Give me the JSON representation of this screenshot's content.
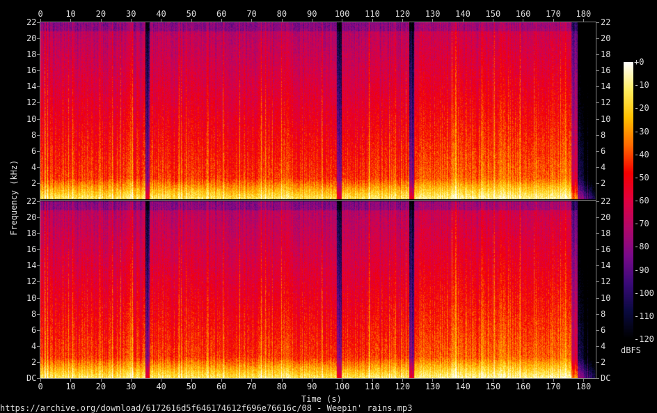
{
  "chart_data": {
    "type": "heatmap",
    "title": "",
    "xlabel": "Time (s)",
    "ylabel": "Frequency (kHz)",
    "x_ticks": [
      "0",
      "10",
      "20",
      "30",
      "40",
      "50",
      "60",
      "70",
      "80",
      "90",
      "100",
      "110",
      "120",
      "130",
      "140",
      "150",
      "160",
      "170",
      "180"
    ],
    "xlim": [
      0,
      184
    ],
    "y_ticks_channel": [
      "DC",
      "2",
      "4",
      "6",
      "8",
      "10",
      "12",
      "14",
      "16",
      "18",
      "20",
      "22"
    ],
    "ylim_khz": [
      0,
      22
    ],
    "channels": 2,
    "colorbar": {
      "label": "dBFS",
      "ticks": [
        "+0",
        "-10",
        "-20",
        "-30",
        "-40",
        "-50",
        "-60",
        "-70",
        "-80",
        "-90",
        "-100",
        "-110",
        "-120"
      ],
      "range": [
        -120,
        0
      ],
      "colors": [
        "#000000",
        "#0a0a40",
        "#3a0a78",
        "#7a0a8a",
        "#b0086a",
        "#e00040",
        "#f40000",
        "#ff6a00",
        "#ffc000",
        "#ffee60",
        "#ffffff"
      ]
    },
    "features": {
      "audio_end_s": 178,
      "quiet_gaps_s": [
        35.5,
        99,
        123
      ],
      "loud_section_s": [
        124,
        176
      ]
    }
  },
  "footer": {
    "source": "https://archive.org/download/6172616d5f646174612f696e76616c/08 - Weepin' rains.mp3"
  }
}
